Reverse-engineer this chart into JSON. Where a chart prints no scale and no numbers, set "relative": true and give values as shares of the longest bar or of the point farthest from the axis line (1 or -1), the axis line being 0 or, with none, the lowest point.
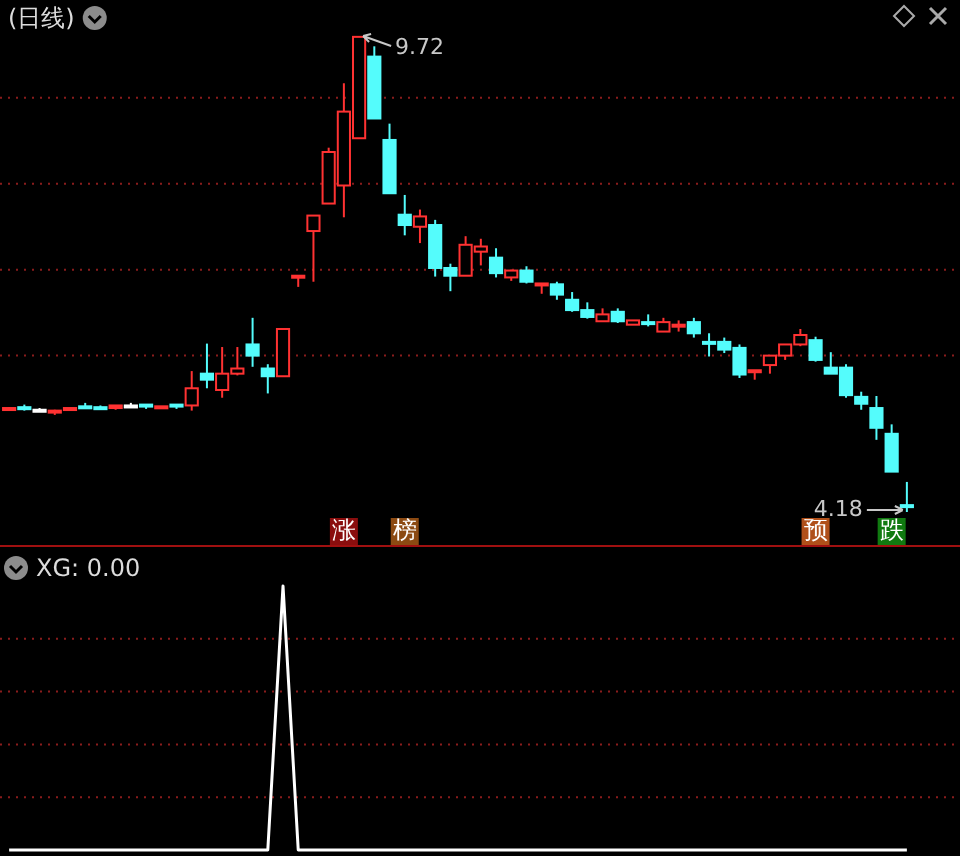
{
  "chart_data": [
    {
      "type": "candlestick",
      "title": "(日线)",
      "relative": false,
      "grid": true,
      "tick_labels": false,
      "categories": [
        null,
        null,
        null,
        null,
        null,
        null,
        null,
        null,
        null,
        null,
        null,
        null,
        null,
        null,
        null,
        null,
        null,
        null,
        null,
        null,
        null,
        null,
        null,
        null,
        null,
        null,
        null,
        null,
        null,
        null,
        null,
        null,
        null,
        null,
        null,
        null,
        null,
        null,
        null,
        null,
        null,
        null,
        null,
        null,
        null,
        null,
        null,
        null,
        null,
        null,
        null,
        null,
        null,
        null,
        null,
        null,
        null,
        null,
        null,
        null
      ],
      "ohlc": [
        [
          5.39,
          5.4,
          5.38,
          5.39
        ],
        [
          5.4,
          5.43,
          5.36,
          5.39
        ],
        [
          5.37,
          5.39,
          5.37,
          5.37
        ],
        [
          5.35,
          5.37,
          5.31,
          5.36
        ],
        [
          5.38,
          5.39,
          5.38,
          5.39
        ],
        [
          5.41,
          5.45,
          5.38,
          5.4
        ],
        [
          5.4,
          5.42,
          5.37,
          5.39
        ],
        [
          5.39,
          5.42,
          5.37,
          5.42
        ],
        [
          5.42,
          5.45,
          5.42,
          5.42
        ],
        [
          5.43,
          5.43,
          5.38,
          5.41
        ],
        [
          5.41,
          5.41,
          5.4,
          5.41
        ],
        [
          5.43,
          5.43,
          5.38,
          5.41
        ],
        [
          5.42,
          5.82,
          5.36,
          5.62
        ],
        [
          5.79,
          6.14,
          5.62,
          5.72
        ],
        [
          5.6,
          6.1,
          5.51,
          5.79
        ],
        [
          5.79,
          6.1,
          5.77,
          5.85
        ],
        [
          6.13,
          6.44,
          5.87,
          6.0
        ],
        [
          5.85,
          5.9,
          5.56,
          5.76
        ],
        [
          5.76,
          6.31,
          5.76,
          6.31
        ],
        [
          6.92,
          6.93,
          6.8,
          6.93
        ],
        [
          7.45,
          7.63,
          6.86,
          7.63
        ],
        [
          7.77,
          8.42,
          7.77,
          8.37
        ],
        [
          7.98,
          9.17,
          7.61,
          8.84
        ],
        [
          8.53,
          9.72,
          8.53,
          9.71
        ],
        [
          9.48,
          9.6,
          8.76,
          8.76
        ],
        [
          8.51,
          8.7,
          7.89,
          7.89
        ],
        [
          7.64,
          7.87,
          7.4,
          7.52
        ],
        [
          7.5,
          7.7,
          7.31,
          7.62
        ],
        [
          7.52,
          7.58,
          6.92,
          7.02
        ],
        [
          7.02,
          7.07,
          6.75,
          6.93
        ],
        [
          6.93,
          7.39,
          6.93,
          7.29
        ],
        [
          7.21,
          7.36,
          7.05,
          7.27
        ],
        [
          7.14,
          7.25,
          6.91,
          6.96
        ],
        [
          6.91,
          7.0,
          6.87,
          6.99
        ],
        [
          6.99,
          7.04,
          6.84,
          6.86
        ],
        [
          6.83,
          6.84,
          6.72,
          6.84
        ],
        [
          6.83,
          6.86,
          6.65,
          6.71
        ],
        [
          6.65,
          6.74,
          6.51,
          6.53
        ],
        [
          6.53,
          6.62,
          6.43,
          6.45
        ],
        [
          6.4,
          6.55,
          6.4,
          6.48
        ],
        [
          6.51,
          6.55,
          6.38,
          6.4
        ],
        [
          6.36,
          6.41,
          6.36,
          6.41
        ],
        [
          6.39,
          6.48,
          6.34,
          6.37
        ],
        [
          6.28,
          6.44,
          6.28,
          6.39
        ],
        [
          6.35,
          6.41,
          6.28,
          6.36
        ],
        [
          6.39,
          6.44,
          6.21,
          6.26
        ],
        [
          6.16,
          6.26,
          5.99,
          6.14
        ],
        [
          6.16,
          6.21,
          6.03,
          6.07
        ],
        [
          6.09,
          6.13,
          5.74,
          5.78
        ],
        [
          5.81,
          5.83,
          5.72,
          5.83
        ],
        [
          5.89,
          6.0,
          5.79,
          6.0
        ],
        [
          6.0,
          6.13,
          5.95,
          6.13
        ],
        [
          6.13,
          6.31,
          6.11,
          6.24
        ],
        [
          6.18,
          6.22,
          5.93,
          5.95
        ],
        [
          5.86,
          6.04,
          5.79,
          5.79
        ],
        [
          5.86,
          5.9,
          5.51,
          5.54
        ],
        [
          5.52,
          5.58,
          5.37,
          5.44
        ],
        [
          5.39,
          5.53,
          5.02,
          5.16
        ],
        [
          5.09,
          5.2,
          4.65,
          4.65
        ],
        [
          4.26,
          4.53,
          4.18,
          4.25
        ]
      ],
      "colors": [
        "#ff3232",
        "#54fcfc",
        "#ffffff",
        "#ff3232",
        "#ff3232",
        "#54fcfc",
        "#54fcfc",
        "#ff3232",
        "#ffffff",
        "#54fcfc",
        "#ff3232",
        "#54fcfc",
        "#ff3232",
        "#54fcfc",
        "#ff3232",
        "#ff3232",
        "#54fcfc",
        "#54fcfc",
        "#ff3232",
        "#ff3232",
        "#ff3232",
        "#ff3232",
        "#ff3232",
        "#ff3232",
        "#54fcfc",
        "#54fcfc",
        "#54fcfc",
        "#ff3232",
        "#54fcfc",
        "#54fcfc",
        "#ff3232",
        "#ff3232",
        "#54fcfc",
        "#ff3232",
        "#54fcfc",
        "#ff3232",
        "#54fcfc",
        "#54fcfc",
        "#54fcfc",
        "#ff3232",
        "#54fcfc",
        "#ff3232",
        "#54fcfc",
        "#ff3232",
        "#ff3232",
        "#54fcfc",
        "#54fcfc",
        "#54fcfc",
        "#54fcfc",
        "#ff3232",
        "#ff3232",
        "#ff3232",
        "#ff3232",
        "#54fcfc",
        "#54fcfc",
        "#54fcfc",
        "#54fcfc",
        "#54fcfc",
        "#54fcfc",
        "#54fcfc"
      ],
      "yticks": [
        {
          "value": 6,
          "label": null
        },
        {
          "value": 7,
          "label": null
        },
        {
          "value": 8,
          "label": null
        },
        {
          "value": 9,
          "label": null
        }
      ],
      "annotations": [
        "9.72",
        "4.18",
        "涨",
        "榜",
        "预",
        "跌"
      ]
    },
    {
      "type": "line",
      "title": "XG: 0.00",
      "relative": true,
      "tick_labels": false,
      "ref_lines": [
        {
          "axis": "y",
          "value": 0.2,
          "color": "#8a1c1c",
          "line_style": "dotted"
        },
        {
          "axis": "y",
          "value": 0.4,
          "color": "#8a1c1c",
          "line_style": "dotted"
        },
        {
          "axis": "y",
          "value": 0.6,
          "color": "#8a1c1c",
          "line_style": "dotted"
        },
        {
          "axis": "y",
          "value": 0.8,
          "color": "#8a1c1c",
          "line_style": "dotted"
        }
      ],
      "categories": [
        null,
        null,
        null,
        null,
        null,
        null,
        null,
        null,
        null,
        null,
        null,
        null,
        null,
        null,
        null,
        null,
        null,
        null,
        null,
        null,
        null,
        null,
        null,
        null,
        null,
        null,
        null,
        null,
        null,
        null,
        null,
        null,
        null,
        null,
        null,
        null,
        null,
        null,
        null,
        null,
        null,
        null,
        null,
        null,
        null,
        null,
        null,
        null,
        null,
        null,
        null,
        null,
        null,
        null,
        null,
        null,
        null,
        null,
        null,
        null
      ],
      "series": [
        {
          "color": "#ffffff",
          "values": [
            0,
            0,
            0,
            0,
            0,
            0,
            0,
            0,
            0,
            0,
            0,
            0,
            0,
            0,
            0,
            0,
            0,
            0,
            1,
            0,
            0,
            0,
            0,
            0,
            0,
            0,
            0,
            0,
            0,
            0,
            0,
            0,
            0,
            0,
            0,
            0,
            0,
            0,
            0,
            0,
            0,
            0,
            0,
            0,
            0,
            0,
            0,
            0,
            0,
            0,
            0,
            0,
            0,
            0,
            0,
            0,
            0,
            0,
            0,
            0
          ]
        }
      ]
    }
  ]
}
